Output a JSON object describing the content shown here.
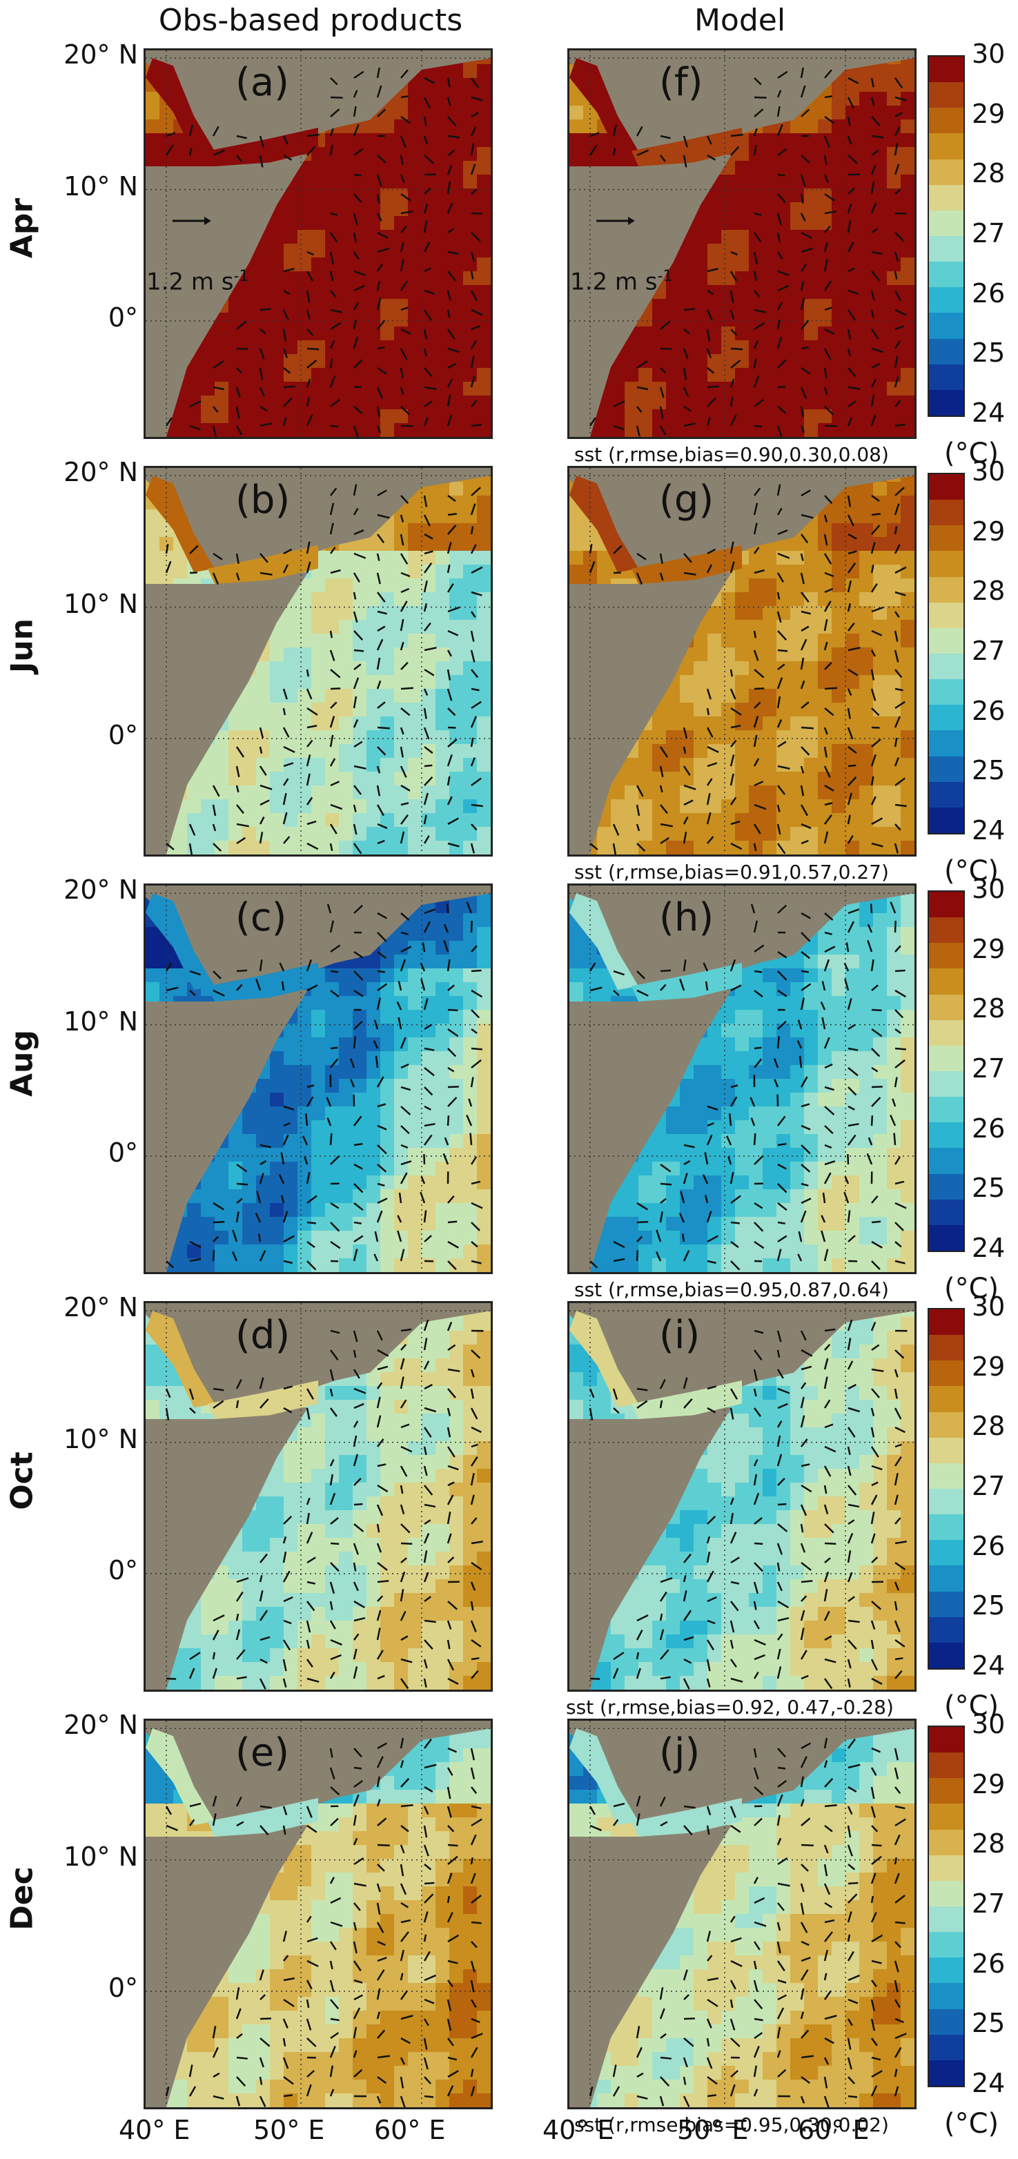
{
  "columns": [
    "Obs-based products",
    "Model"
  ],
  "rows": [
    {
      "month": "Apr",
      "obs_label": "(a)",
      "model_label": "(f)",
      "stat": "sst (r,rmse,bias=0.90,0.30,0.08)",
      "scale": "1.2 m s",
      "scale_sup": "-1"
    },
    {
      "month": "Jun",
      "obs_label": "(b)",
      "model_label": "(g)",
      "stat": "sst (r,rmse,bias=0.91,0.57,0.27)"
    },
    {
      "month": "Aug",
      "obs_label": "(c)",
      "model_label": "(h)",
      "stat": "sst (r,rmse,bias=0.95,0.87,0.64)"
    },
    {
      "month": "Oct",
      "obs_label": "(d)",
      "model_label": "(i)",
      "stat": "sst (r,rmse,bias=0.92, 0.47,-0.28)"
    },
    {
      "month": "Dec",
      "obs_label": "(e)",
      "model_label": "(j)",
      "stat": "sst (r,rmse,bias=0.95,0.30,0.02)"
    }
  ],
  "lat_labels": [
    "20° N",
    "10° N",
    "0°"
  ],
  "lon_labels": [
    "40° E",
    "50° E",
    "60° E"
  ],
  "colorbar": {
    "min": 24,
    "max": 30,
    "ticks": [
      "30",
      "29",
      "28",
      "27",
      "26",
      "25",
      "24"
    ],
    "unit": "(°C)",
    "colors": [
      "#8b0a0a",
      "#a8400f",
      "#b8650e",
      "#c98e1e",
      "#d7b24e",
      "#dcd48a",
      "#c5e6b4",
      "#9fe0d0",
      "#5dcfd2",
      "#2bb5d0",
      "#1a90c6",
      "#1466b3",
      "#0f3e9e",
      "#0a2388"
    ]
  },
  "colors": {
    "land": "#8a8270",
    "frame": "#222222"
  }
}
